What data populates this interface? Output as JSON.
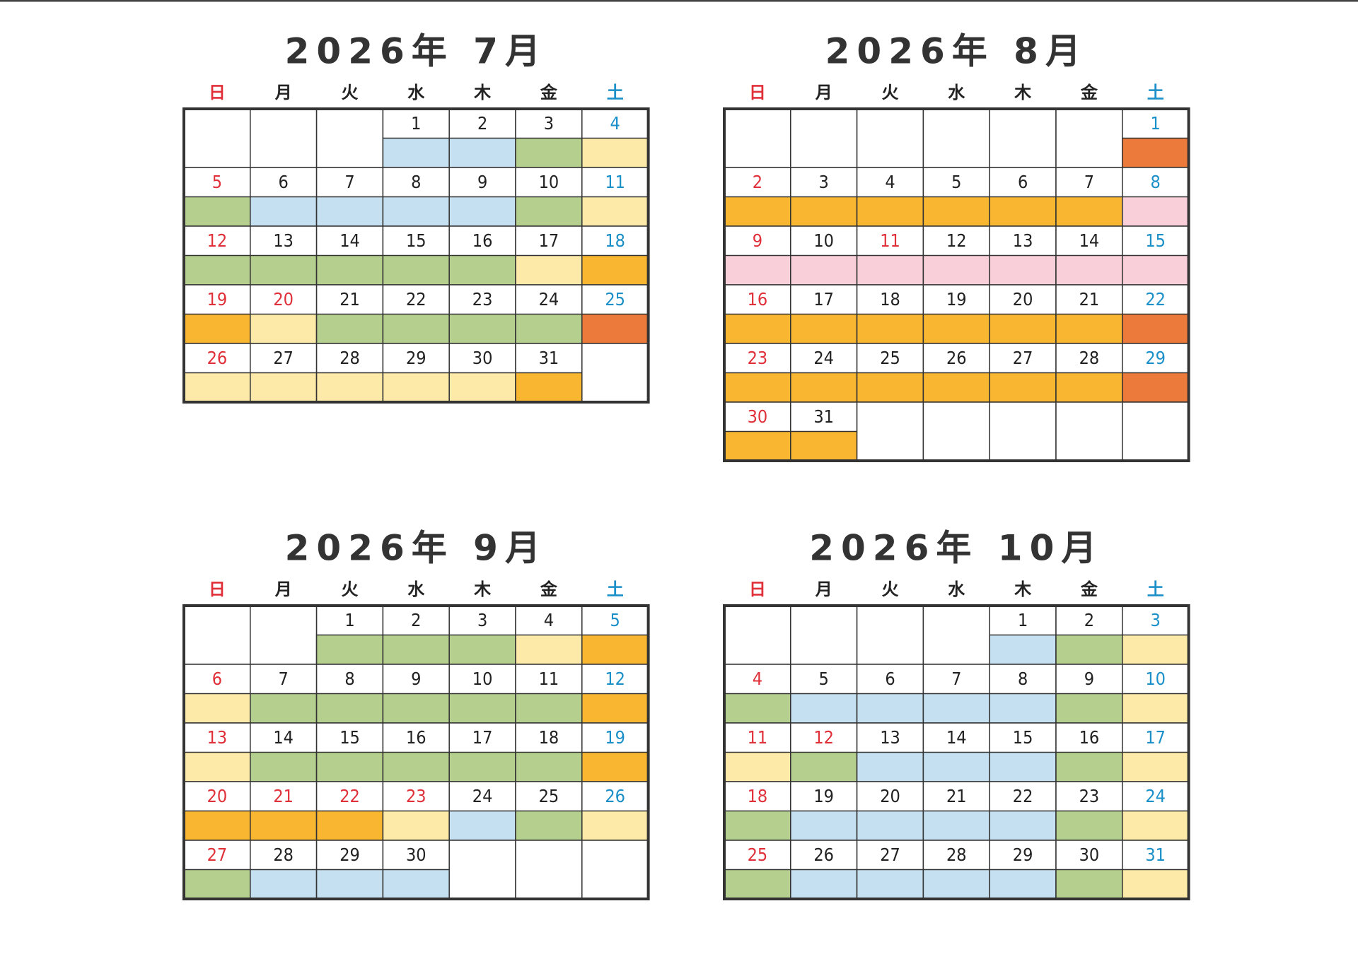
{
  "weekdays": [
    "日",
    "月",
    "火",
    "水",
    "木",
    "金",
    "土"
  ],
  "weekday_colors": [
    "#e0303a",
    "#222222",
    "#222222",
    "#222222",
    "#222222",
    "#222222",
    "#1a8fc8"
  ],
  "holiday_color": "#e0303a",
  "calendars": [
    {
      "title": "2026年 7月",
      "holidays": [
        "20"
      ],
      "weeks": [
        [
          null,
          null,
          null,
          [
            "1",
            "#c5e0f0"
          ],
          [
            "2",
            "#c5e0f0"
          ],
          [
            "3",
            "#b5cf8e"
          ],
          [
            "4",
            "#fde9a8"
          ]
        ],
        [
          [
            "5",
            "#b5cf8e"
          ],
          [
            "6",
            "#c5e0f0"
          ],
          [
            "7",
            "#c5e0f0"
          ],
          [
            "8",
            "#c5e0f0"
          ],
          [
            "9",
            "#c5e0f0"
          ],
          [
            "10",
            "#b5cf8e"
          ],
          [
            "11",
            "#fde9a8"
          ]
        ],
        [
          [
            "12",
            "#b5cf8e"
          ],
          [
            "13",
            "#b5cf8e"
          ],
          [
            "14",
            "#b5cf8e"
          ],
          [
            "15",
            "#b5cf8e"
          ],
          [
            "16",
            "#b5cf8e"
          ],
          [
            "17",
            "#fde9a8"
          ],
          [
            "18",
            "#f9b731"
          ]
        ],
        [
          [
            "19",
            "#f9b731"
          ],
          [
            "20",
            "#fde9a8"
          ],
          [
            "21",
            "#b5cf8e"
          ],
          [
            "22",
            "#b5cf8e"
          ],
          [
            "23",
            "#b5cf8e"
          ],
          [
            "24",
            "#b5cf8e"
          ],
          [
            "25",
            "#ec7a3a"
          ]
        ],
        [
          [
            "26",
            "#fde9a8"
          ],
          [
            "27",
            "#fde9a8"
          ],
          [
            "28",
            "#fde9a8"
          ],
          [
            "29",
            "#fde9a8"
          ],
          [
            "30",
            "#fde9a8"
          ],
          [
            "31",
            "#f9b731"
          ],
          null
        ]
      ]
    },
    {
      "title": "2026年 8月",
      "holidays": [
        "11"
      ],
      "weeks": [
        [
          null,
          null,
          null,
          null,
          null,
          null,
          [
            "1",
            "#ec7a3a"
          ]
        ],
        [
          [
            "2",
            "#f9b731"
          ],
          [
            "3",
            "#f9b731"
          ],
          [
            "4",
            "#f9b731"
          ],
          [
            "5",
            "#f9b731"
          ],
          [
            "6",
            "#f9b731"
          ],
          [
            "7",
            "#f9b731"
          ],
          [
            "8",
            "#f9cfd9"
          ]
        ],
        [
          [
            "9",
            "#f9cfd9"
          ],
          [
            "10",
            "#f9cfd9"
          ],
          [
            "11",
            "#f9cfd9"
          ],
          [
            "12",
            "#f9cfd9"
          ],
          [
            "13",
            "#f9cfd9"
          ],
          [
            "14",
            "#f9cfd9"
          ],
          [
            "15",
            "#f9cfd9"
          ]
        ],
        [
          [
            "16",
            "#f9b731"
          ],
          [
            "17",
            "#f9b731"
          ],
          [
            "18",
            "#f9b731"
          ],
          [
            "19",
            "#f9b731"
          ],
          [
            "20",
            "#f9b731"
          ],
          [
            "21",
            "#f9b731"
          ],
          [
            "22",
            "#ec7a3a"
          ]
        ],
        [
          [
            "23",
            "#f9b731"
          ],
          [
            "24",
            "#f9b731"
          ],
          [
            "25",
            "#f9b731"
          ],
          [
            "26",
            "#f9b731"
          ],
          [
            "27",
            "#f9b731"
          ],
          [
            "28",
            "#f9b731"
          ],
          [
            "29",
            "#ec7a3a"
          ]
        ],
        [
          [
            "30",
            "#f9b731"
          ],
          [
            "31",
            "#f9b731"
          ],
          null,
          null,
          null,
          null,
          null
        ]
      ]
    },
    {
      "title": "2026年 9月",
      "holidays": [
        "21",
        "22",
        "23"
      ],
      "weeks": [
        [
          null,
          null,
          [
            "1",
            "#b5cf8e"
          ],
          [
            "2",
            "#b5cf8e"
          ],
          [
            "3",
            "#b5cf8e"
          ],
          [
            "4",
            "#fde9a8"
          ],
          [
            "5",
            "#f9b731"
          ]
        ],
        [
          [
            "6",
            "#fde9a8"
          ],
          [
            "7",
            "#b5cf8e"
          ],
          [
            "8",
            "#b5cf8e"
          ],
          [
            "9",
            "#b5cf8e"
          ],
          [
            "10",
            "#b5cf8e"
          ],
          [
            "11",
            "#b5cf8e"
          ],
          [
            "12",
            "#f9b731"
          ]
        ],
        [
          [
            "13",
            "#fde9a8"
          ],
          [
            "14",
            "#b5cf8e"
          ],
          [
            "15",
            "#b5cf8e"
          ],
          [
            "16",
            "#b5cf8e"
          ],
          [
            "17",
            "#b5cf8e"
          ],
          [
            "18",
            "#b5cf8e"
          ],
          [
            "19",
            "#f9b731"
          ]
        ],
        [
          [
            "20",
            "#f9b731"
          ],
          [
            "21",
            "#f9b731"
          ],
          [
            "22",
            "#f9b731"
          ],
          [
            "23",
            "#fde9a8"
          ],
          [
            "24",
            "#c5e0f0"
          ],
          [
            "25",
            "#b5cf8e"
          ],
          [
            "26",
            "#fde9a8"
          ]
        ],
        [
          [
            "27",
            "#b5cf8e"
          ],
          [
            "28",
            "#c5e0f0"
          ],
          [
            "29",
            "#c5e0f0"
          ],
          [
            "30",
            "#c5e0f0"
          ],
          null,
          null,
          null
        ]
      ]
    },
    {
      "title": "2026年 10月",
      "holidays": [
        "12"
      ],
      "weeks": [
        [
          null,
          null,
          null,
          null,
          [
            "1",
            "#c5e0f0"
          ],
          [
            "2",
            "#b5cf8e"
          ],
          [
            "3",
            "#fde9a8"
          ]
        ],
        [
          [
            "4",
            "#b5cf8e"
          ],
          [
            "5",
            "#c5e0f0"
          ],
          [
            "6",
            "#c5e0f0"
          ],
          [
            "7",
            "#c5e0f0"
          ],
          [
            "8",
            "#c5e0f0"
          ],
          [
            "9",
            "#b5cf8e"
          ],
          [
            "10",
            "#fde9a8"
          ]
        ],
        [
          [
            "11",
            "#fde9a8"
          ],
          [
            "12",
            "#b5cf8e"
          ],
          [
            "13",
            "#c5e0f0"
          ],
          [
            "14",
            "#c5e0f0"
          ],
          [
            "15",
            "#c5e0f0"
          ],
          [
            "16",
            "#b5cf8e"
          ],
          [
            "17",
            "#fde9a8"
          ]
        ],
        [
          [
            "18",
            "#b5cf8e"
          ],
          [
            "19",
            "#c5e0f0"
          ],
          [
            "20",
            "#c5e0f0"
          ],
          [
            "21",
            "#c5e0f0"
          ],
          [
            "22",
            "#c5e0f0"
          ],
          [
            "23",
            "#b5cf8e"
          ],
          [
            "24",
            "#fde9a8"
          ]
        ],
        [
          [
            "25",
            "#b5cf8e"
          ],
          [
            "26",
            "#c5e0f0"
          ],
          [
            "27",
            "#c5e0f0"
          ],
          [
            "28",
            "#c5e0f0"
          ],
          [
            "29",
            "#c5e0f0"
          ],
          [
            "30",
            "#b5cf8e"
          ],
          [
            "31",
            "#fde9a8"
          ]
        ]
      ]
    }
  ]
}
